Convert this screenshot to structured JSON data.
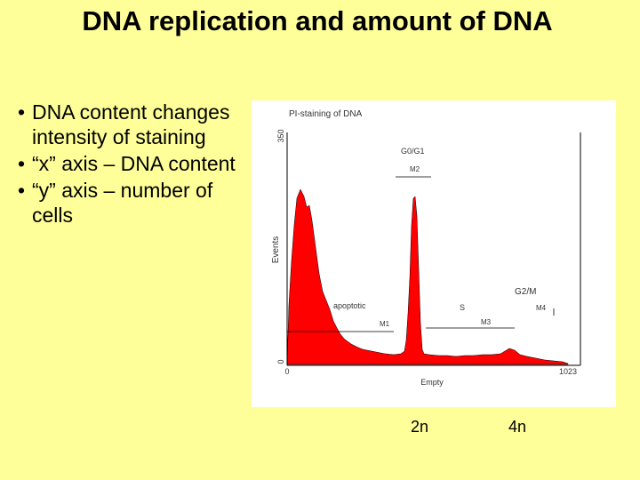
{
  "slide": {
    "title": "DNA replication and amount of DNA",
    "bullets": [
      "DNA content changes intensity of staining",
      "“x” axis – DNA content",
      "“y” axis – number of cells"
    ],
    "bullet_symbol": "•"
  },
  "figure": {
    "title": "PI-staining of DNA",
    "y_label": "Events",
    "x_label": "Empty",
    "y_max_label": "350",
    "y_min_label": "0",
    "x_min_label": "0",
    "x_max_label": "1023",
    "region_labels": [
      "G0/G1",
      "M2",
      "apoptotic",
      "M1",
      "S",
      "M3",
      "G2/M",
      "M4"
    ],
    "fill_color": "#FF0000"
  },
  "below_axis_labels": [
    "2n",
    "4n"
  ],
  "colors": {
    "background": "#FFFF99"
  }
}
